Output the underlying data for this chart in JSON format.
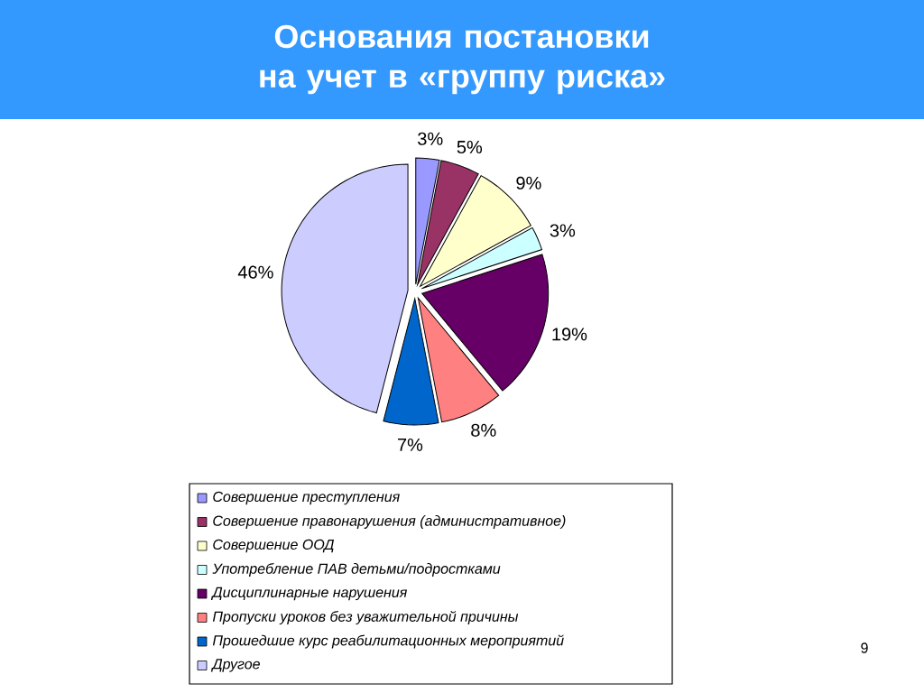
{
  "chart_data": {
    "type": "pie",
    "title": "Основания постановки на учет в «группу риска»",
    "categories": [
      "Совершение  преступления",
      "Совершение правонарушения (административное)",
      "Совершение ООД",
      "Употребление ПАВ детьми/подростками",
      "Дисциплинарные нарушения",
      "Пропуски уроков без уважительной причины",
      "Прошедшие курс реабилитационных мероприятий",
      "Другое"
    ],
    "values": [
      3,
      5,
      9,
      3,
      19,
      8,
      7,
      46
    ],
    "value_labels": [
      "3%",
      "5%",
      "9%",
      "3%",
      "19%",
      "8%",
      "7%",
      "46%"
    ],
    "colors": [
      "#9999ff",
      "#993366",
      "#ffffcc",
      "#ccffff",
      "#660066",
      "#ff8080",
      "#0066cc",
      "#ccccff"
    ],
    "legend": "bottom",
    "annotations": [
      "9"
    ]
  }
}
